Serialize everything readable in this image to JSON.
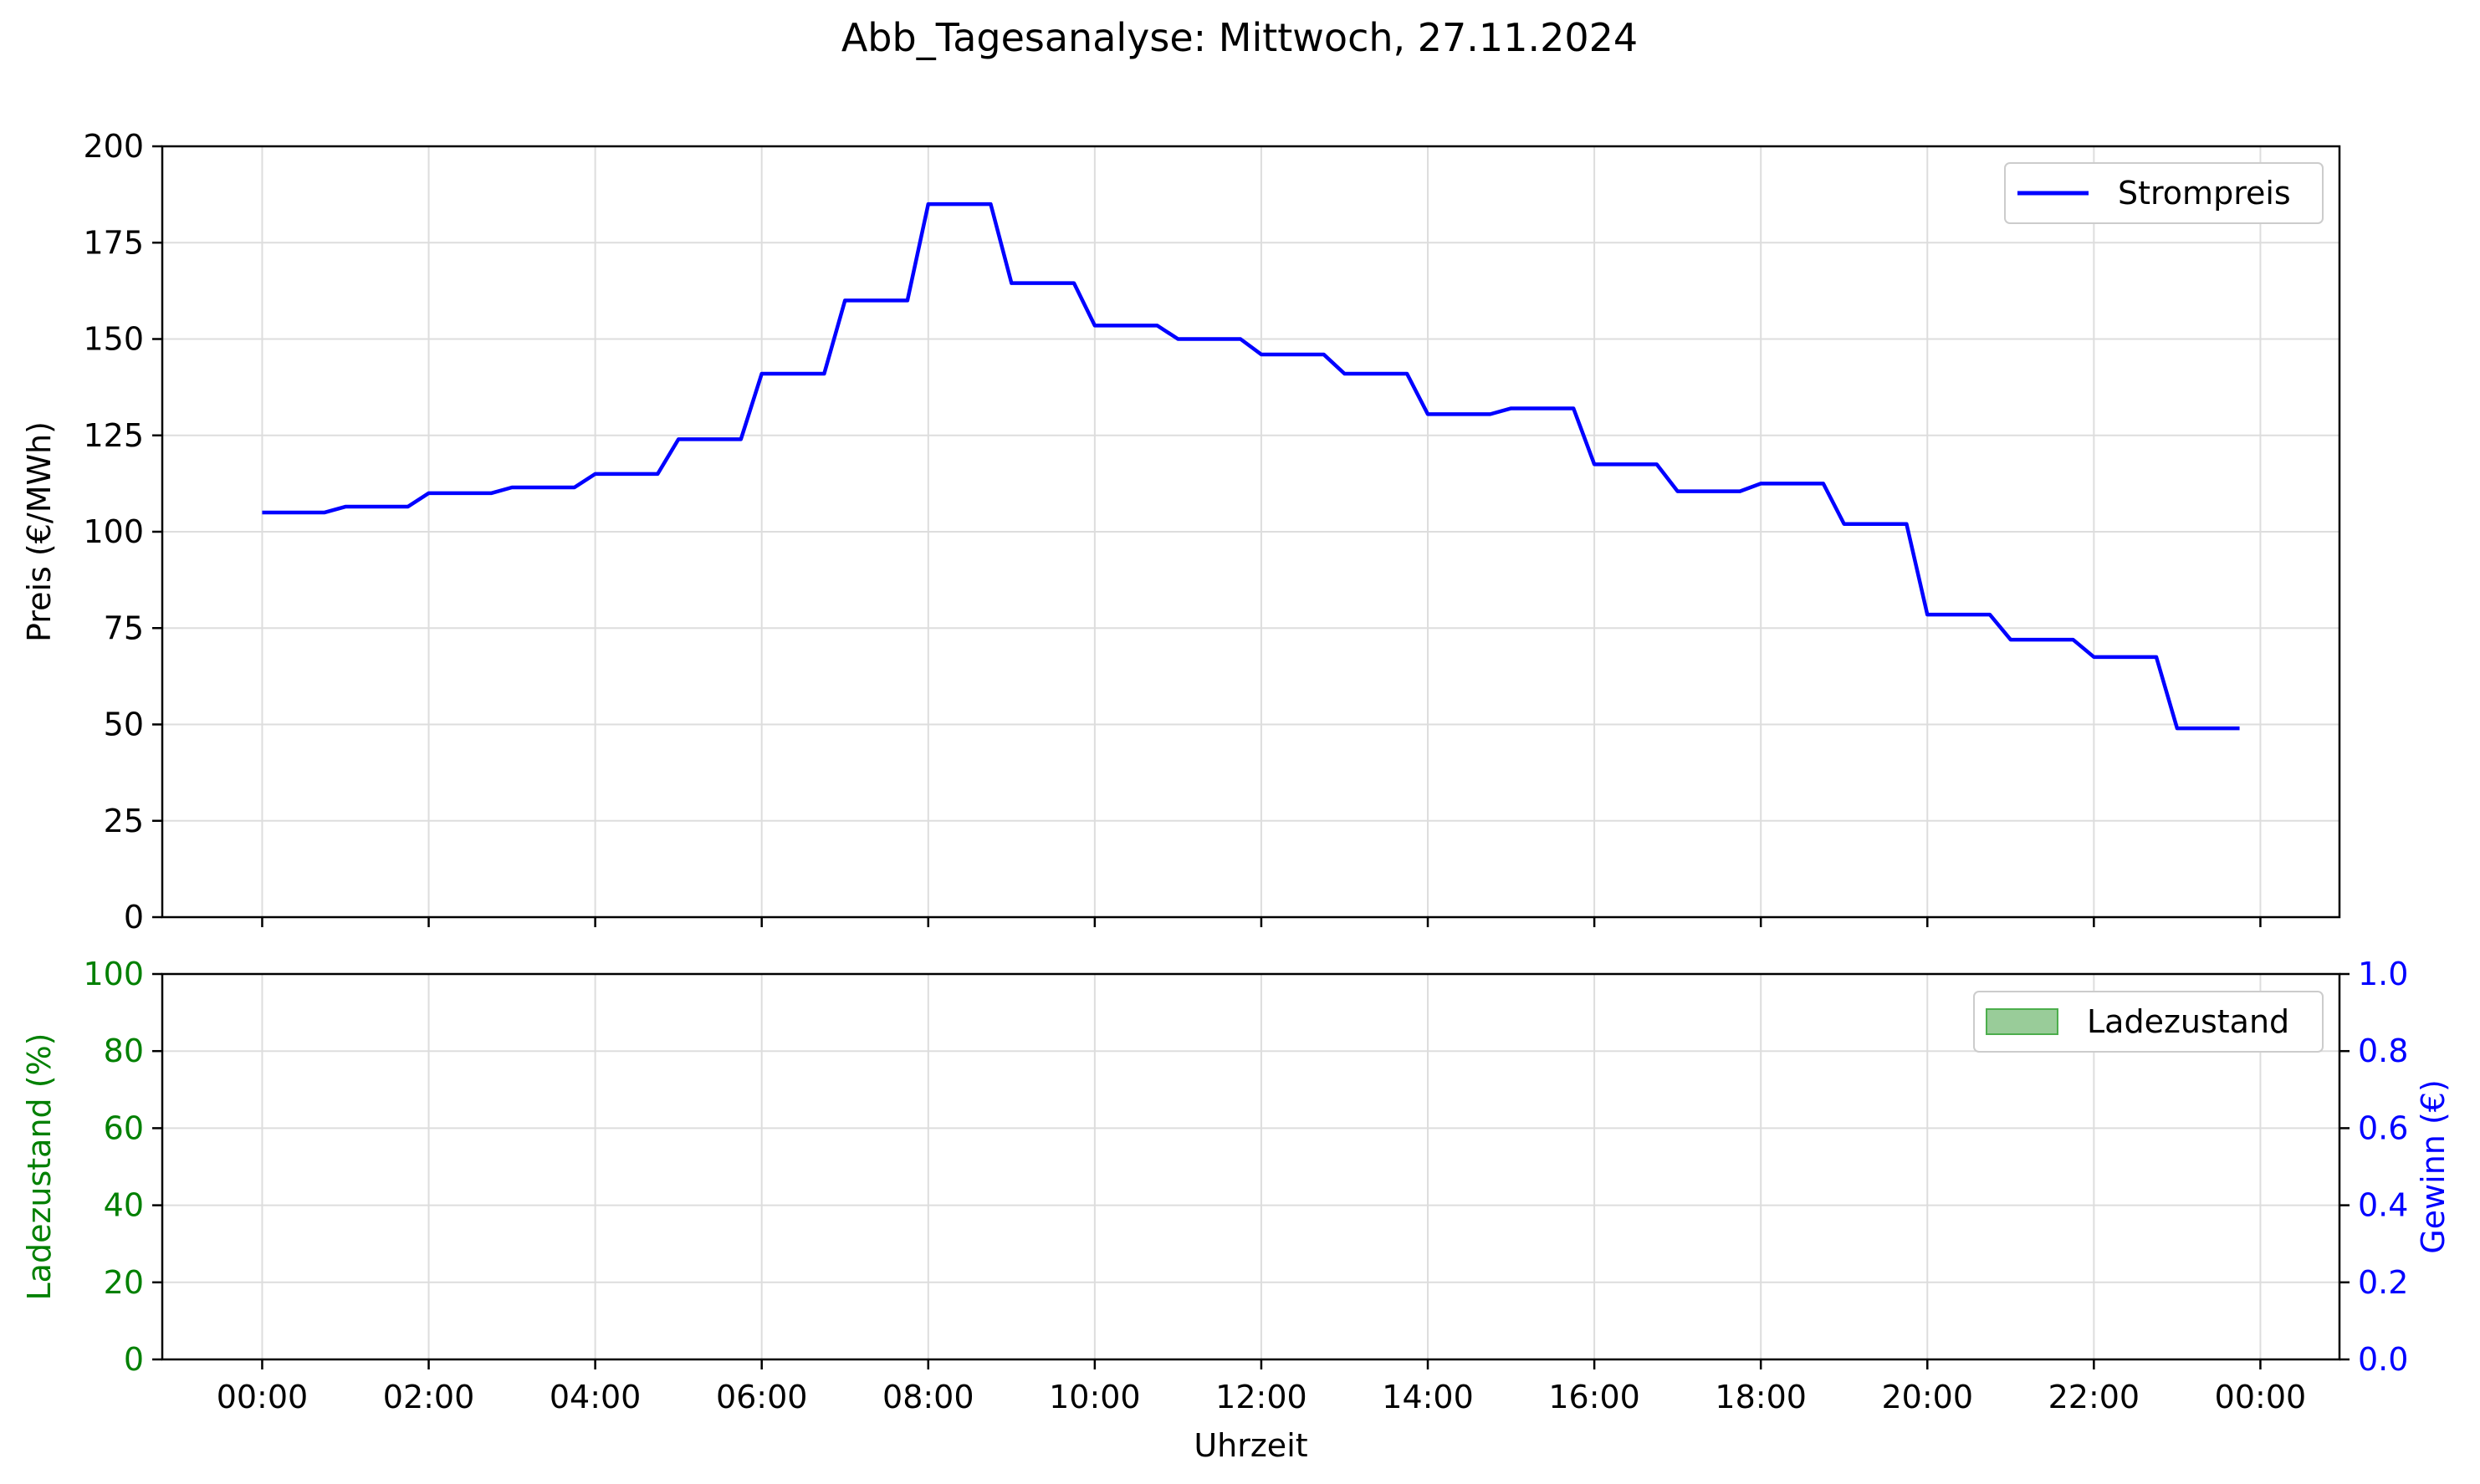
{
  "figure": {
    "title": "Abb_Tagesanalyse: Mittwoch, 27.11.2024"
  },
  "colors": {
    "price_line": "#0000ff",
    "soc_fill": "#99cc99",
    "soc_edge": "#4cae4c",
    "left_axis_bottom": "#008000",
    "right_axis_bottom": "#0000ff",
    "grid": "#dddddd",
    "axes": "#000000"
  },
  "chart_data": [
    {
      "type": "line",
      "panel": "top",
      "title": "",
      "xlabel": "",
      "ylabel": "Preis (€/MWh)",
      "ylim": [
        0,
        200
      ],
      "yticks": [
        0,
        25,
        50,
        75,
        100,
        125,
        150,
        175,
        200
      ],
      "xlim_hours": [
        -1.2,
        24.95
      ],
      "xticks_hours": [
        0,
        2,
        4,
        6,
        8,
        10,
        12,
        14,
        16,
        18,
        20,
        22,
        24
      ],
      "grid": true,
      "legend": "top-right",
      "series": [
        {
          "name": "Strompreis",
          "color": "#0000ff",
          "x_hours": [
            0.0,
            0.75,
            1.0,
            1.75,
            2.0,
            2.75,
            3.0,
            3.75,
            4.0,
            4.75,
            5.0,
            5.75,
            6.0,
            6.75,
            7.0,
            7.75,
            8.0,
            8.75,
            9.0,
            9.75,
            10.0,
            10.75,
            11.0,
            11.75,
            12.0,
            12.75,
            13.0,
            13.75,
            14.0,
            14.75,
            15.0,
            15.75,
            16.0,
            16.75,
            17.0,
            17.75,
            18.0,
            18.75,
            19.0,
            19.75,
            20.0,
            20.75,
            21.0,
            21.75,
            22.0,
            22.75,
            23.0,
            23.75
          ],
          "values": [
            105,
            105,
            106.5,
            106.5,
            110,
            110,
            111.5,
            111.5,
            115,
            115,
            124,
            124,
            141,
            141,
            160,
            160,
            185,
            185,
            164.5,
            164.5,
            153.5,
            153.5,
            150,
            150,
            146,
            146,
            141,
            141,
            130.5,
            130.5,
            132,
            132,
            117.5,
            117.5,
            110.5,
            110.5,
            112.5,
            112.5,
            102,
            102,
            78.5,
            78.5,
            72,
            72,
            67.5,
            67.5,
            49,
            49
          ]
        }
      ]
    },
    {
      "type": "area",
      "panel": "bottom",
      "title": "",
      "xlabel": "Uhrzeit",
      "ylabel": "Ladezustand (%)",
      "ylim": [
        0,
        100
      ],
      "yticks": [
        0,
        20,
        40,
        60,
        80,
        100
      ],
      "y2label": "Gewinn (€)",
      "y2lim": [
        0.0,
        1.0
      ],
      "y2ticks": [
        "0.0",
        "0.2",
        "0.4",
        "0.6",
        "0.8",
        "1.0"
      ],
      "xlim_hours": [
        -1.2,
        24.95
      ],
      "xticks_hours": [
        0,
        2,
        4,
        6,
        8,
        10,
        12,
        14,
        16,
        18,
        20,
        22,
        24
      ],
      "xtick_labels": [
        "00:00",
        "02:00",
        "04:00",
        "06:00",
        "08:00",
        "10:00",
        "12:00",
        "14:00",
        "16:00",
        "18:00",
        "20:00",
        "22:00",
        "00:00"
      ],
      "grid": true,
      "legend": "top-right",
      "series": [
        {
          "name": "Ladezustand",
          "values": []
        }
      ]
    }
  ]
}
